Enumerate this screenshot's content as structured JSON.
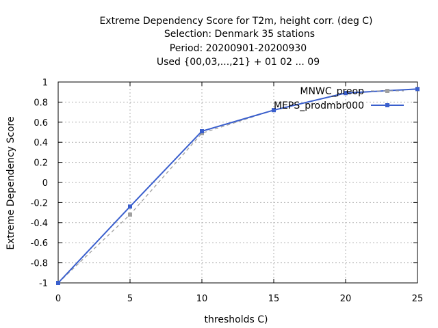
{
  "chart_data": {
    "type": "line",
    "title": [
      "Extreme Dependency Score  for T2m, height corr. (deg C)",
      "Selection: Denmark     35 stations",
      "Period: 20200901-20200930",
      "Used {00,03,...,21} + 01 02 ... 09"
    ],
    "xlabel": "thresholds C)",
    "ylabel": "Extreme Dependency Score",
    "x": [
      0,
      5,
      10,
      15,
      20,
      25
    ],
    "xlim": [
      0,
      25
    ],
    "ylim": [
      -1,
      1
    ],
    "xticks": [
      "0",
      "5",
      "10",
      "15",
      "20",
      "25"
    ],
    "yticks": [
      "-1",
      "-0.8",
      "-0.6",
      "-0.4",
      "-0.2",
      "0",
      "0.2",
      "0.4",
      "0.6",
      "0.8",
      "1"
    ],
    "grid": true,
    "legend_position": "top-right",
    "series": [
      {
        "name": "MNWC_preop",
        "color": "#a0a0a0",
        "dashed": true,
        "values": [
          -1.0,
          -0.32,
          0.49,
          0.72,
          0.89,
          0.93
        ]
      },
      {
        "name": "MEPS_prodmbr000",
        "color": "#3a5fcd",
        "dashed": false,
        "values": [
          -1.0,
          -0.24,
          0.51,
          0.72,
          0.89,
          0.93
        ]
      }
    ]
  }
}
